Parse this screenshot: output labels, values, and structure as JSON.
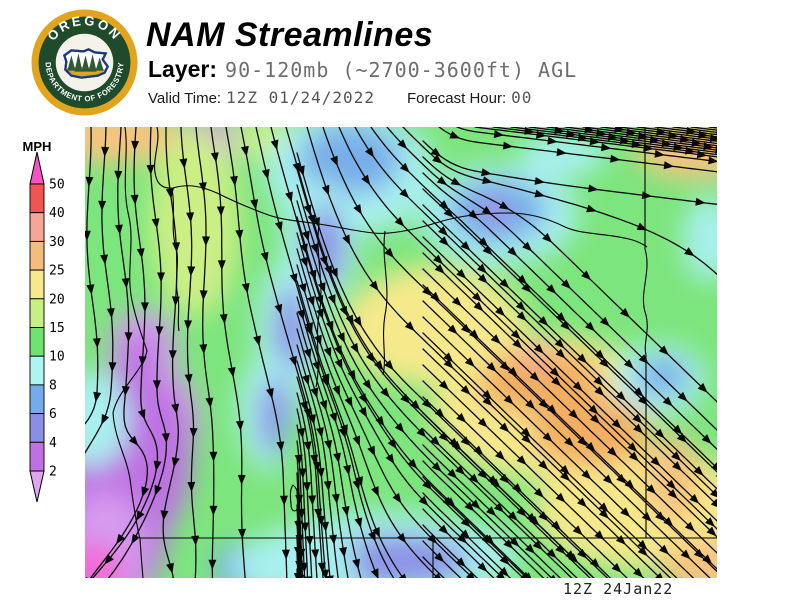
{
  "header": {
    "title": "NAM Streamlines",
    "layer_label": "Layer:",
    "layer_value": "90-120mb (~2700-3600ft) AGL",
    "valid_time_label": "Valid Time:",
    "valid_time_value": "12Z 01/24/2022",
    "forecast_hour_label": "Forecast Hour:",
    "forecast_hour_value": "00"
  },
  "logo": {
    "ring_text_top": "OREGON",
    "ring_text_bottom": "DEPARTMENT OF FORESTRY",
    "colors": {
      "gold": "#E2A41C",
      "dark_green": "#1F4A2C",
      "inner_bg": "#F3F3EC",
      "state_border_blue": "#1C3B7A",
      "state_gold": "#D9A627",
      "tree_green": "#2D5B33"
    }
  },
  "legend": {
    "unit": "MPH",
    "boundaries": [
      50,
      40,
      30,
      25,
      20,
      15,
      10,
      8,
      6,
      4,
      2
    ],
    "segment_colors": [
      "#F2544F",
      "#F5A795",
      "#F3BE7C",
      "#F6E98B",
      "#C6EF85",
      "#6FE26F",
      "#AFF4EE",
      "#74ACEA",
      "#8A8EE5",
      "#BE72E2"
    ],
    "arrow_top_color": "#F852C2",
    "arrow_bottom_color": "#DEA6ED"
  },
  "map": {
    "caption": "12Z 24Jan22",
    "base_color": "#7DE57D",
    "line_color": "#0a0a0a",
    "palette": {
      "orange": "#F6C480",
      "deepOrange": "#F3AE62",
      "yellow": "#F6E98B",
      "salmon": "#F7A3A0",
      "ygreen": "#CBEF85",
      "green": "#7DE57D",
      "cyan": "#A8F0EF",
      "blue": "#79AEE9",
      "periwinkle": "#8C92E6",
      "violet": "#BE72E2",
      "lilac": "#D49BEF",
      "pink": "#F06CD8",
      "magenta": "#EE59C8"
    }
  }
}
